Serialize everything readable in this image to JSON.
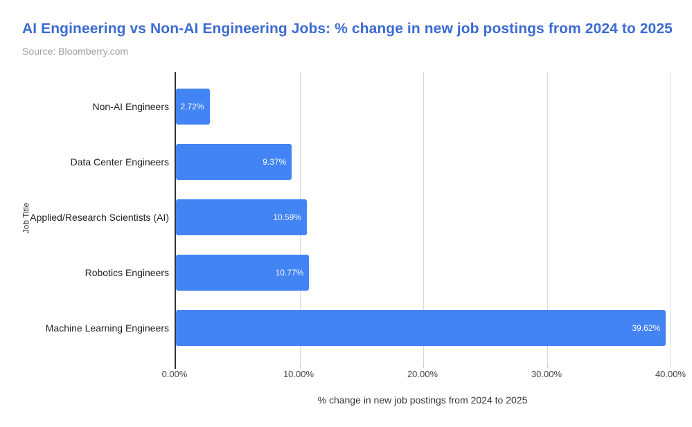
{
  "header": {
    "title": "AI Engineering vs Non-AI Engineering Jobs: % change in new job postings from 2024 to 2025",
    "source": "Source: Bloomberry.com"
  },
  "chart_data": {
    "type": "bar",
    "orientation": "horizontal",
    "title": "AI Engineering vs Non-AI Engineering Jobs: % change in new job postings from 2024 to 2025",
    "subtitle": "Source: Bloomberry.com",
    "categories": [
      "Non-AI Engineers",
      "Data Center Engineers",
      "Applied/Research Scientists (AI)",
      "Robotics Engineers",
      "Machine Learning Engineers"
    ],
    "values": [
      2.72,
      9.37,
      10.59,
      10.77,
      39.62
    ],
    "value_labels": [
      "2.72%",
      "9.37%",
      "10.59%",
      "10.77%",
      "39.62%"
    ],
    "xlabel": "% change in new job postings from 2024 to 2025",
    "ylabel": "Job Title",
    "xlim": [
      0,
      40
    ],
    "x_ticks": [
      0,
      10,
      20,
      30,
      40
    ],
    "x_tick_labels": [
      "0.00%",
      "10.00%",
      "20.00%",
      "30.00%",
      "40.00%"
    ],
    "grid": true,
    "legend": false
  },
  "theme": {
    "bar_color": "#4384f4",
    "title_color": "#3c6bd2",
    "subtitle_color": "#9e9e9e",
    "gridline_color": "#d9d9d9",
    "axis_line_color": "#333333",
    "value_label_color": "#ffffff",
    "background": "#ffffff"
  }
}
